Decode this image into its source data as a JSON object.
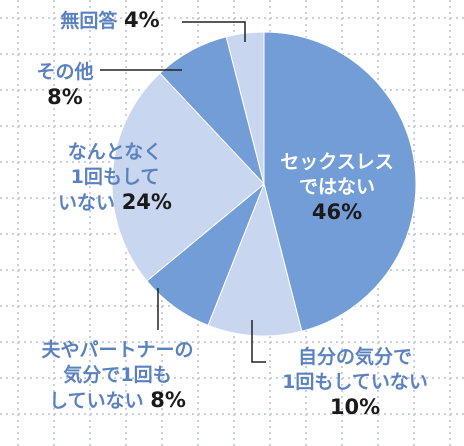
{
  "chart_data": {
    "type": "pie",
    "categories": [
      "セックスレス\nではない",
      "自分の気分で\n1回もしていない",
      "夫やパートナーの\n気分で1回も\nしていない",
      "なんとなく\n1回もして\nいない",
      "その他",
      "無回答"
    ],
    "values": [
      46,
      10,
      8,
      24,
      8,
      4
    ],
    "value_labels": [
      "46%",
      "10%",
      "8%",
      "24%",
      "8%",
      "4%"
    ],
    "colors": [
      "#729dd6",
      "#c9d6ef",
      "#729dd6",
      "#c9d6ef",
      "#729dd6",
      "#c9d6ef"
    ]
  }
}
